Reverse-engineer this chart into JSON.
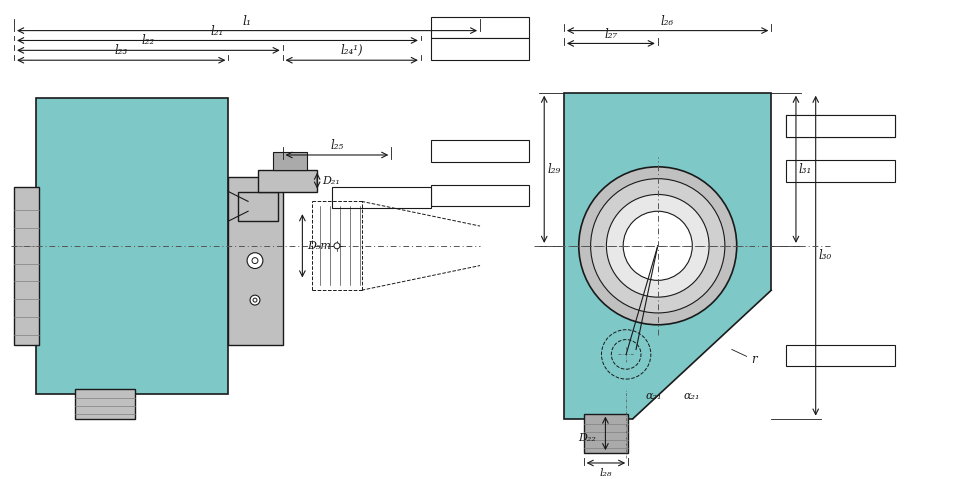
{
  "bg_color": "#ffffff",
  "teal_color": "#7EC8C8",
  "gray_color": "#C0C0C0",
  "dark_gray": "#808080",
  "line_color": "#1a1a1a",
  "dim_color": "#1a1a1a",
  "box_color": "#ffffff",
  "figsize": [
    9.69,
    4.79
  ],
  "dpi": 100,
  "labels": {
    "l1": "l₁",
    "l21": "l₂₁",
    "l22": "l₂₂",
    "l23": "l₂₃",
    "l24": "l₂₄¹)",
    "l25": "l₂₅",
    "d5m": "D₅m",
    "d21": "D₂₁",
    "l26": "l₂₆",
    "l27": "l₂₇",
    "l28": "l₂₈",
    "l29": "l₂₉",
    "l30": "l₃₀",
    "l31": "l₃₁",
    "d22": "D₂₂",
    "a21": "α₂₁",
    "r": "r"
  }
}
